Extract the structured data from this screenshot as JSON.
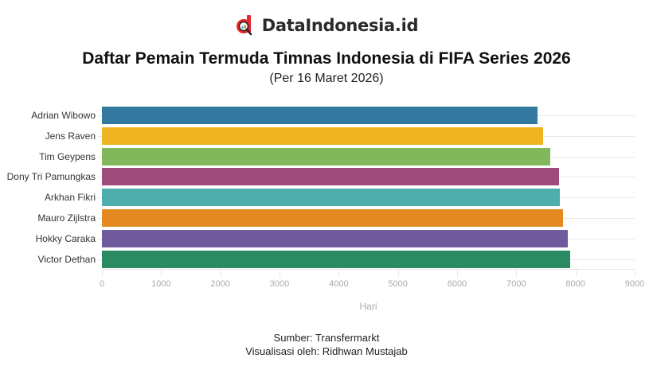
{
  "brand": {
    "name": "DataIndonesia.id",
    "logo_icon": "d-magnifier-logo",
    "logo_color": "#e8262c"
  },
  "header": {
    "title": "Daftar Pemain Termuda Timnas Indonesia di FIFA Series 2026",
    "subtitle": "(Per 16 Maret 2026)"
  },
  "footer": {
    "source": "Sumber: Transfermarkt",
    "credit": "Visualisasi oleh: Ridhwan Mustajab"
  },
  "chart_data": {
    "type": "bar",
    "orientation": "horizontal",
    "title": "Daftar Pemain Termuda Timnas Indonesia di FIFA Series 2026",
    "subtitle": "(Per 16 Maret 2026)",
    "xlabel": "Hari",
    "ylabel": "",
    "xlim": [
      0,
      9000
    ],
    "xticks": [
      0,
      1000,
      2000,
      3000,
      4000,
      5000,
      6000,
      7000,
      8000,
      9000
    ],
    "grid": true,
    "legend": "none",
    "categories": [
      "Adrian Wibowo",
      "Jens Raven",
      "Tim Geypens",
      "Dony Tri Pamungkas",
      "Arkhan Fikri",
      "Mauro Zijlstra",
      "Hokky Caraka",
      "Victor Dethan"
    ],
    "values": [
      7360,
      7455,
      7570,
      7725,
      7740,
      7795,
      7875,
      7915
    ],
    "colors": [
      "#33789f",
      "#eeb422",
      "#82b75c",
      "#9e4a7a",
      "#4eaeae",
      "#e58a20",
      "#6e5a9c",
      "#2a8b62"
    ]
  }
}
